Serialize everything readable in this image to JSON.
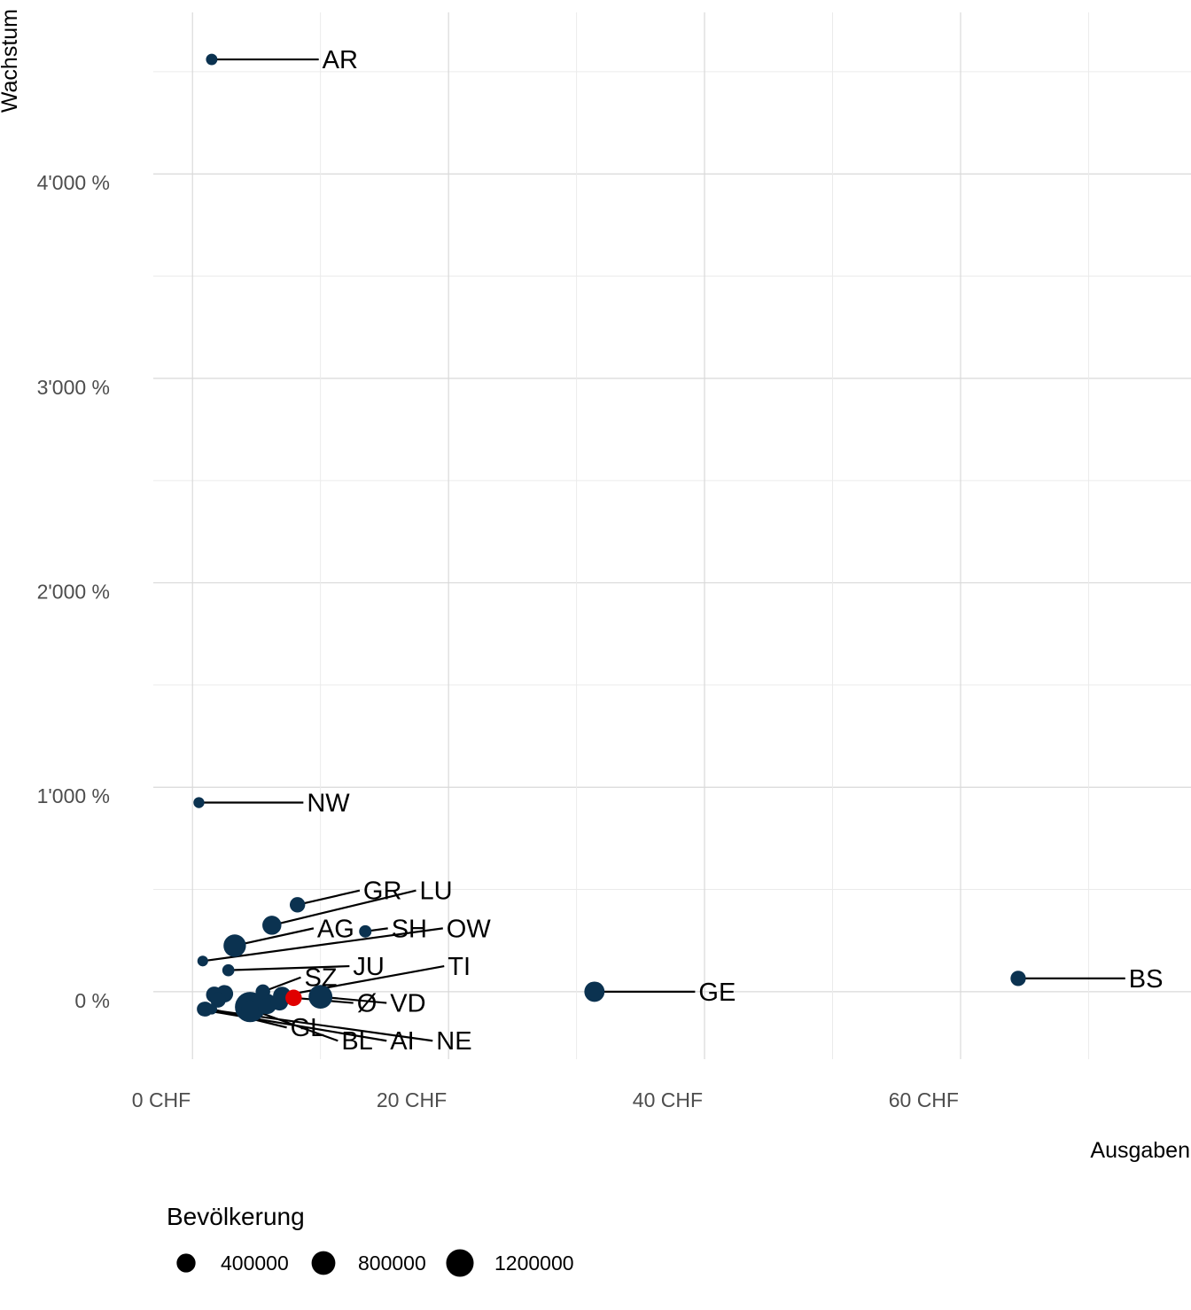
{
  "chart_data": {
    "type": "scatter",
    "xlabel": "Ausgaben",
    "ylabel": "Wachstum",
    "xlim": [
      -5,
      78
    ],
    "ylim": [
      -330,
      4790
    ],
    "x_ticks": [
      {
        "value": 0,
        "label": "0 CHF"
      },
      {
        "value": 20,
        "label": "20 CHF"
      },
      {
        "value": 40,
        "label": "40 CHF"
      },
      {
        "value": 60,
        "label": "60 CHF"
      }
    ],
    "y_ticks": [
      {
        "value": 0,
        "label": "0 %"
      },
      {
        "value": 1000,
        "label": "1'000 %"
      },
      {
        "value": 2000,
        "label": "2'000 %"
      },
      {
        "value": 3000,
        "label": "3'000 %"
      },
      {
        "value": 4000,
        "label": "4'000 %"
      }
    ],
    "grid": true,
    "colors": {
      "default": "#0b3250",
      "highlight": "#e00000"
    },
    "legend": {
      "title": "Bevölkerung",
      "position": "bottom",
      "entries": [
        {
          "value": 400000,
          "label": "400000"
        },
        {
          "value": 800000,
          "label": "800000"
        },
        {
          "value": 1200000,
          "label": "1200000"
        }
      ]
    },
    "points": [
      {
        "label": "AR",
        "x": 1.5,
        "y": 4560,
        "pop": 55000,
        "label_x": 10.0,
        "label_y": 4560
      },
      {
        "label": "NW",
        "x": 0.5,
        "y": 925,
        "pop": 43000,
        "label_x": 8.8,
        "label_y": 925
      },
      {
        "label": "GR",
        "x": 8.2,
        "y": 425,
        "pop": 200000,
        "label_x": 13.2,
        "label_y": 495
      },
      {
        "label": "LU",
        "x": 6.2,
        "y": 325,
        "pop": 410000,
        "label_x": 17.6,
        "label_y": 495
      },
      {
        "label": "AG",
        "x": 3.3,
        "y": 225,
        "pop": 680000,
        "label_x": 9.6,
        "label_y": 310
      },
      {
        "label": "SH",
        "x": 13.5,
        "y": 295,
        "pop": 82000,
        "label_x": 15.4,
        "label_y": 310
      },
      {
        "label": "OW",
        "x": 0.8,
        "y": 150,
        "pop": 38000,
        "label_x": 19.7,
        "label_y": 310
      },
      {
        "label": "JU",
        "x": 2.8,
        "y": 105,
        "pop": 73000,
        "label_x": 12.4,
        "label_y": 125
      },
      {
        "label": "TI",
        "x": 7.0,
        "y": -20,
        "pop": 350000,
        "label_x": 19.8,
        "label_y": 125
      },
      {
        "label": "SZ",
        "x": 5.5,
        "y": 0,
        "pop": 160000,
        "label_x": 8.6,
        "label_y": 70
      },
      {
        "label": "Ø",
        "x": 7.9,
        "y": -30,
        "pop": 250000,
        "label_x": 12.7,
        "label_y": -55,
        "highlight": true
      },
      {
        "label": "VD",
        "x": 10.0,
        "y": -25,
        "pop": 800000,
        "label_x": 15.3,
        "label_y": -55
      },
      {
        "label": "GE",
        "x": 31.4,
        "y": 0,
        "pop": 500000,
        "label_x": 39.4,
        "label_y": 0
      },
      {
        "label": "BS",
        "x": 64.5,
        "y": 65,
        "pop": 195000,
        "label_x": 73.0,
        "label_y": 65
      },
      {
        "label": "GL",
        "x": 1.5,
        "y": -85,
        "pop": 40000,
        "label_x": 7.5,
        "label_y": -175
      },
      {
        "label": "BL",
        "x": 4.5,
        "y": -85,
        "pop": 290000,
        "label_x": 11.5,
        "label_y": -240
      },
      {
        "label": "AI",
        "x": 0.9,
        "y": -90,
        "pop": 16000,
        "label_x": 15.3,
        "label_y": -240
      },
      {
        "label": "NE",
        "x": 1.0,
        "y": -85,
        "pop": 176000,
        "label_x": 18.9,
        "label_y": -240
      },
      {
        "label": "",
        "x": 0.9,
        "y": -85,
        "pop": 150000
      },
      {
        "label": "",
        "x": 1.7,
        "y": -15,
        "pop": 250000
      },
      {
        "label": "",
        "x": 2.5,
        "y": -10,
        "pop": 300000
      },
      {
        "label": "",
        "x": 5.8,
        "y": -60,
        "pop": 520000
      },
      {
        "label": "",
        "x": 6.8,
        "y": -50,
        "pop": 300000
      },
      {
        "label": "",
        "x": 2.0,
        "y": -40,
        "pop": 200000
      },
      {
        "label": "",
        "x": 4.5,
        "y": -75,
        "pop": 1550000
      }
    ]
  }
}
